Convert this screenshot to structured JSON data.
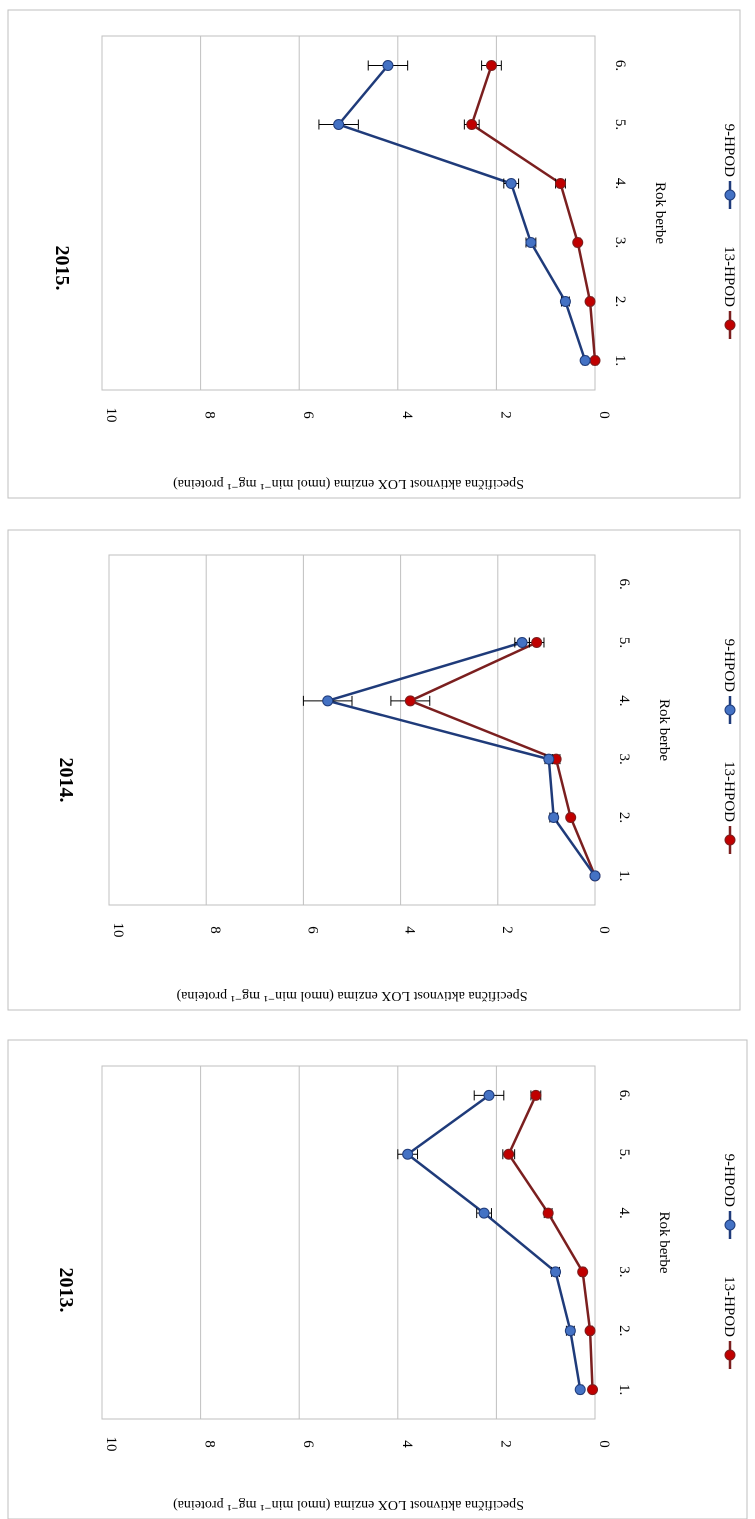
{
  "chart_data": [
    {
      "type": "line",
      "title": "2015.",
      "xlabel": "Rok berbe",
      "ylabel": "Specifična aktivnost LOX enzima (nmol min⁻¹ mg⁻¹ proteina)",
      "categories": [
        "1.",
        "2.",
        "3.",
        "4.",
        "5.",
        "6."
      ],
      "ylim": [
        0,
        10
      ],
      "yticks": [
        "0",
        "2",
        "4",
        "6",
        "8",
        "10"
      ],
      "grid": true,
      "legend_position": "bottom",
      "series": [
        {
          "name": "13-HPOD",
          "color": "#7b1f1f",
          "marker": "#c00000",
          "values": [
            0.0,
            0.1,
            0.35,
            0.7,
            2.5,
            2.1
          ],
          "errors": [
            0.05,
            0.05,
            0.05,
            0.1,
            0.15,
            0.2
          ]
        },
        {
          "name": "9-HPOD",
          "color": "#1f3b7a",
          "marker": "#4472c4",
          "values": [
            0.2,
            0.6,
            1.3,
            1.7,
            5.2,
            4.2
          ],
          "errors": [
            0.05,
            0.08,
            0.1,
            0.15,
            0.4,
            0.4
          ]
        }
      ]
    },
    {
      "type": "line",
      "title": "2014.",
      "xlabel": "Rok berbe",
      "ylabel": "Specifična aktivnost LOX enzima (nmol min⁻¹ mg⁻¹ proteina)",
      "categories": [
        "1.",
        "2.",
        "3.",
        "4.",
        "5.",
        "6."
      ],
      "ylim": [
        0,
        10
      ],
      "yticks": [
        "0",
        "2",
        "4",
        "6",
        "8",
        "10"
      ],
      "grid": true,
      "legend_position": "bottom",
      "series": [
        {
          "name": "13-HPOD",
          "color": "#7b1f1f",
          "marker": "#c00000",
          "values": [
            0.0,
            0.5,
            0.8,
            3.8,
            1.2,
            null
          ],
          "errors": [
            0.02,
            0.05,
            0.08,
            0.4,
            0.15,
            null
          ]
        },
        {
          "name": "9-HPOD",
          "color": "#1f3b7a",
          "marker": "#4472c4",
          "values": [
            0.0,
            0.85,
            0.95,
            5.5,
            1.5,
            null
          ],
          "errors": [
            0.02,
            0.08,
            0.08,
            0.5,
            0.15,
            null
          ]
        }
      ]
    },
    {
      "type": "line",
      "title": "2013.",
      "xlabel": "Rok berbe",
      "ylabel": "Specifična aktivnost LOX enzima (nmol min⁻¹ mg⁻¹ proteina)",
      "categories": [
        "1.",
        "2.",
        "3.",
        "4.",
        "5.",
        "6."
      ],
      "ylim": [
        0,
        10
      ],
      "yticks": [
        "0",
        "2",
        "4",
        "6",
        "8",
        "10"
      ],
      "grid": true,
      "legend_position": "bottom",
      "series": [
        {
          "name": "13-HPOD",
          "color": "#7b1f1f",
          "marker": "#c00000",
          "values": [
            0.05,
            0.1,
            0.25,
            0.95,
            1.75,
            1.2
          ],
          "errors": [
            0.03,
            0.05,
            0.05,
            0.08,
            0.12,
            0.1
          ]
        },
        {
          "name": "9-HPOD",
          "color": "#1f3b7a",
          "marker": "#4472c4",
          "values": [
            0.3,
            0.5,
            0.8,
            2.25,
            3.8,
            2.15
          ],
          "errors": [
            0.05,
            0.08,
            0.08,
            0.15,
            0.2,
            0.3
          ]
        }
      ]
    }
  ]
}
